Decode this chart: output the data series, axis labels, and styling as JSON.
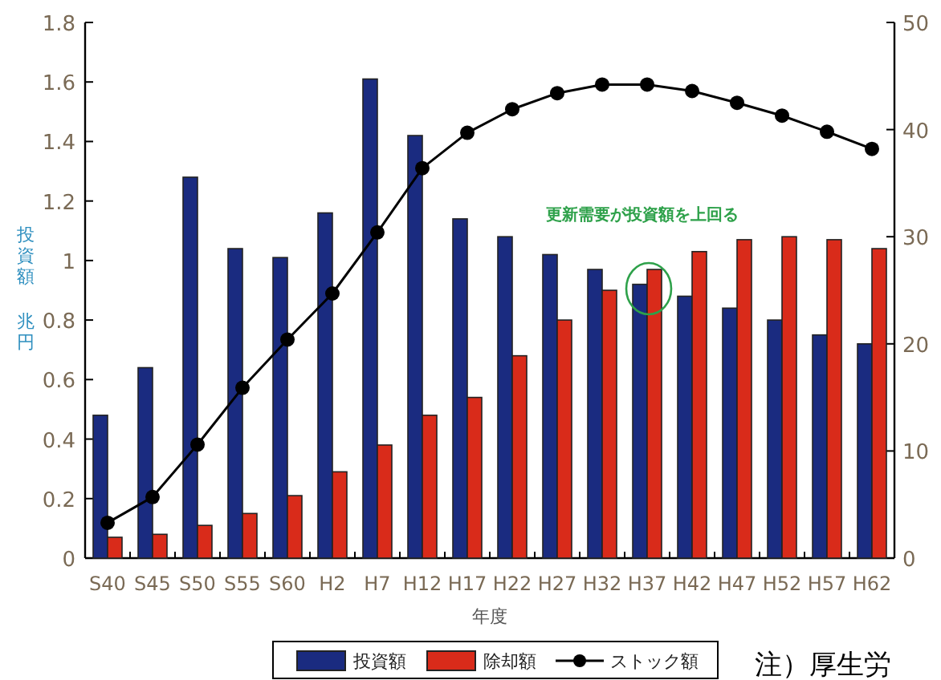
{
  "chart_data": {
    "type": "bar",
    "categories": [
      "S40",
      "S45",
      "S50",
      "S55",
      "S60",
      "H2",
      "H7",
      "H12",
      "H17",
      "H22",
      "H27",
      "H32",
      "H37",
      "H42",
      "H47",
      "H52",
      "H57",
      "H62"
    ],
    "series": [
      {
        "name": "投資額",
        "color": "#1a2b80",
        "values": [
          0.48,
          0.64,
          1.28,
          1.04,
          1.01,
          1.16,
          1.61,
          1.42,
          1.14,
          1.08,
          1.02,
          0.97,
          0.92,
          0.88,
          0.84,
          0.8,
          0.75,
          0.72
        ]
      },
      {
        "name": "除却額",
        "color": "#d92b1a",
        "values": [
          0.07,
          0.08,
          0.11,
          0.15,
          0.21,
          0.29,
          0.38,
          0.48,
          0.54,
          0.68,
          0.8,
          0.9,
          0.97,
          1.03,
          1.07,
          1.08,
          1.07,
          1.04
        ]
      },
      {
        "name": "ストック額",
        "type": "line",
        "axis": "y2",
        "color": "#000000",
        "marker": "circle",
        "values": [
          3.3,
          5.7,
          10.6,
          15.9,
          20.4,
          24.7,
          30.4,
          36.4,
          39.7,
          41.9,
          43.4,
          44.2,
          44.2,
          43.6,
          42.5,
          41.3,
          39.8,
          38.2
        ]
      }
    ],
    "xlabel": "年度",
    "ylabel": "投資額",
    "ylim": [
      0,
      1.8
    ],
    "yticks": [
      0,
      0.2,
      0.4,
      0.6,
      0.8,
      1,
      1.2,
      1.4,
      1.6,
      1.8
    ],
    "y2lim": [
      0,
      50
    ],
    "y2ticks": [
      0,
      10,
      20,
      30,
      40,
      50
    ],
    "legend": "bottom",
    "annotations": [
      "兆円",
      "更新需要が投資額を上回る",
      "注）厚生労"
    ]
  }
}
